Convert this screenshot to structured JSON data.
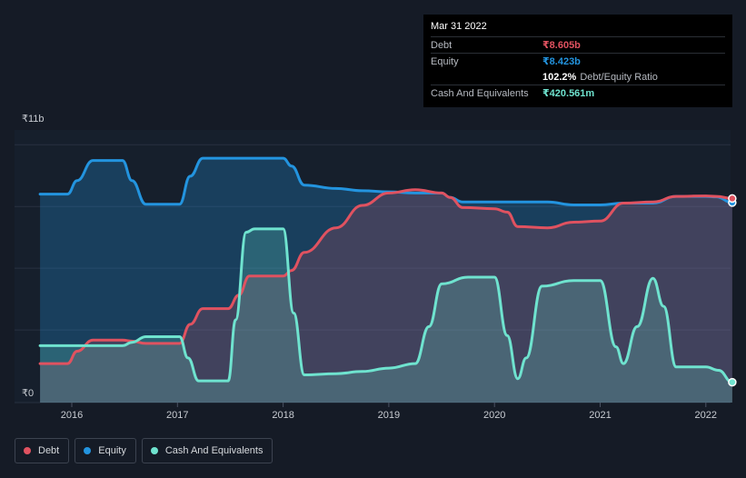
{
  "tooltip": {
    "date": "Mar 31 2022",
    "debt_label": "Debt",
    "debt_value": "₹8.605b",
    "equity_label": "Equity",
    "equity_value": "₹8.423b",
    "ratio_value": "102.2%",
    "ratio_label": "Debt/Equity Ratio",
    "cash_label": "Cash And Equivalents",
    "cash_value": "₹420.561m"
  },
  "legend": {
    "debt": "Debt",
    "equity": "Equity",
    "cash": "Cash And Equivalents"
  },
  "colors": {
    "debt": "#e05260",
    "equity": "#2394df",
    "cash": "#6fe3cf",
    "background": "#151b26"
  },
  "chart_data": {
    "type": "area",
    "title": "",
    "xlabel": "",
    "ylabel": "",
    "ylim": [
      0,
      11
    ],
    "y_unit": "₹ billions",
    "y_tick_labels": [
      {
        "value": 11,
        "label": "₹11b"
      },
      {
        "value": 0,
        "label": "₹0"
      }
    ],
    "xlim": [
      2015.7,
      2022.25
    ],
    "x_ticks": [
      2016,
      2017,
      2018,
      2019,
      2020,
      2021,
      2022
    ],
    "x_tick_labels": [
      "2016",
      "2017",
      "2018",
      "2019",
      "2020",
      "2021",
      "2022"
    ],
    "series": [
      {
        "name": "Equity",
        "key": "equity",
        "points": [
          [
            2015.7,
            8.8
          ],
          [
            2015.96,
            8.8
          ],
          [
            2016.05,
            9.4
          ],
          [
            2016.2,
            10.3
          ],
          [
            2016.48,
            10.3
          ],
          [
            2016.57,
            9.4
          ],
          [
            2016.7,
            8.35
          ],
          [
            2016.85,
            8.35
          ],
          [
            2017.02,
            8.35
          ],
          [
            2017.12,
            9.6
          ],
          [
            2017.24,
            10.4
          ],
          [
            2017.5,
            10.4
          ],
          [
            2018.0,
            10.4
          ],
          [
            2018.08,
            10.05
          ],
          [
            2018.2,
            9.2
          ],
          [
            2018.5,
            9.05
          ],
          [
            2018.75,
            8.95
          ],
          [
            2019.0,
            8.9
          ],
          [
            2019.25,
            8.85
          ],
          [
            2019.5,
            8.85
          ],
          [
            2019.58,
            8.65
          ],
          [
            2019.7,
            8.45
          ],
          [
            2020.0,
            8.45
          ],
          [
            2020.2,
            8.45
          ],
          [
            2020.5,
            8.45
          ],
          [
            2020.75,
            8.32
          ],
          [
            2021.0,
            8.32
          ],
          [
            2021.22,
            8.4
          ],
          [
            2021.5,
            8.4
          ],
          [
            2021.72,
            8.7
          ],
          [
            2022.0,
            8.7
          ],
          [
            2022.1,
            8.68
          ],
          [
            2022.25,
            8.423
          ]
        ]
      },
      {
        "name": "Debt",
        "key": "debt",
        "points": [
          [
            2015.7,
            1.25
          ],
          [
            2015.96,
            1.25
          ],
          [
            2016.05,
            1.8
          ],
          [
            2016.2,
            2.3
          ],
          [
            2016.48,
            2.3
          ],
          [
            2016.57,
            2.25
          ],
          [
            2016.7,
            2.15
          ],
          [
            2016.85,
            2.15
          ],
          [
            2017.02,
            2.15
          ],
          [
            2017.12,
            3.0
          ],
          [
            2017.24,
            3.7
          ],
          [
            2017.48,
            3.7
          ],
          [
            2017.58,
            4.3
          ],
          [
            2017.68,
            5.15
          ],
          [
            2018.0,
            5.15
          ],
          [
            2018.08,
            5.4
          ],
          [
            2018.2,
            6.2
          ],
          [
            2018.5,
            7.3
          ],
          [
            2018.75,
            8.3
          ],
          [
            2019.0,
            8.85
          ],
          [
            2019.25,
            9.0
          ],
          [
            2019.5,
            8.85
          ],
          [
            2019.58,
            8.65
          ],
          [
            2019.7,
            8.2
          ],
          [
            2020.0,
            8.15
          ],
          [
            2020.12,
            8.0
          ],
          [
            2020.22,
            7.35
          ],
          [
            2020.5,
            7.3
          ],
          [
            2020.75,
            7.55
          ],
          [
            2021.0,
            7.6
          ],
          [
            2021.22,
            8.4
          ],
          [
            2021.5,
            8.45
          ],
          [
            2021.72,
            8.7
          ],
          [
            2022.0,
            8.72
          ],
          [
            2022.1,
            8.7
          ],
          [
            2022.25,
            8.605
          ]
        ]
      },
      {
        "name": "Cash And Equivalents",
        "key": "cash",
        "points": [
          [
            2015.7,
            2.05
          ],
          [
            2016.48,
            2.05
          ],
          [
            2016.57,
            2.2
          ],
          [
            2016.7,
            2.45
          ],
          [
            2017.02,
            2.45
          ],
          [
            2017.1,
            1.5
          ],
          [
            2017.2,
            0.48
          ],
          [
            2017.48,
            0.48
          ],
          [
            2017.55,
            3.2
          ],
          [
            2017.65,
            7.1
          ],
          [
            2017.73,
            7.25
          ],
          [
            2018.0,
            7.25
          ],
          [
            2018.1,
            3.5
          ],
          [
            2018.2,
            0.75
          ],
          [
            2018.5,
            0.8
          ],
          [
            2018.75,
            0.9
          ],
          [
            2019.0,
            1.05
          ],
          [
            2019.25,
            1.25
          ],
          [
            2019.38,
            2.9
          ],
          [
            2019.5,
            4.8
          ],
          [
            2019.75,
            5.1
          ],
          [
            2020.0,
            5.1
          ],
          [
            2020.12,
            2.5
          ],
          [
            2020.22,
            0.58
          ],
          [
            2020.3,
            1.5
          ],
          [
            2020.45,
            4.7
          ],
          [
            2020.75,
            4.95
          ],
          [
            2021.0,
            4.95
          ],
          [
            2021.15,
            2.0
          ],
          [
            2021.22,
            1.25
          ],
          [
            2021.35,
            2.9
          ],
          [
            2021.5,
            5.05
          ],
          [
            2021.6,
            3.8
          ],
          [
            2021.72,
            1.1
          ],
          [
            2022.0,
            1.1
          ],
          [
            2022.12,
            0.95
          ],
          [
            2022.25,
            0.421
          ]
        ]
      }
    ]
  }
}
